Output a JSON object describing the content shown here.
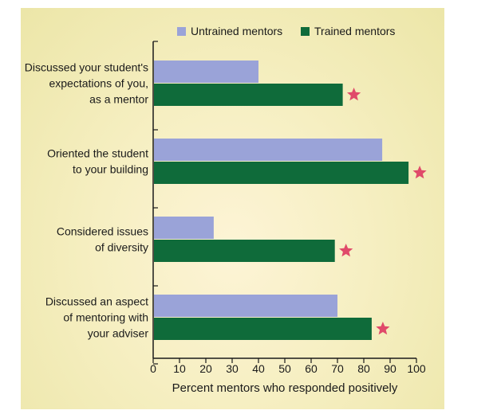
{
  "chart_data": {
    "type": "bar",
    "orientation": "horizontal",
    "categories": [
      [
        "Discussed your student's",
        "expectations of you,",
        "as a mentor"
      ],
      [
        "Oriented the student",
        "to your building"
      ],
      [
        "Considered issues",
        "of diversity"
      ],
      [
        "Discussed an aspect",
        "of mentoring with",
        "your adviser"
      ]
    ],
    "series": [
      {
        "name": "Untrained mentors",
        "color": "#9aa3d8",
        "values": [
          40,
          87,
          23,
          70
        ]
      },
      {
        "name": "Trained mentors",
        "color": "#0f6b3a",
        "values": [
          72,
          97,
          69,
          83
        ]
      }
    ],
    "significance_markers": [
      true,
      true,
      true,
      true
    ],
    "marker_color": "#e04a6a",
    "xlabel": "Percent mentors who responded positively",
    "xlim": [
      0,
      100
    ],
    "xticks": [
      0,
      10,
      20,
      30,
      40,
      50,
      60,
      70,
      80,
      90,
      100
    ],
    "legend_position": "top"
  }
}
